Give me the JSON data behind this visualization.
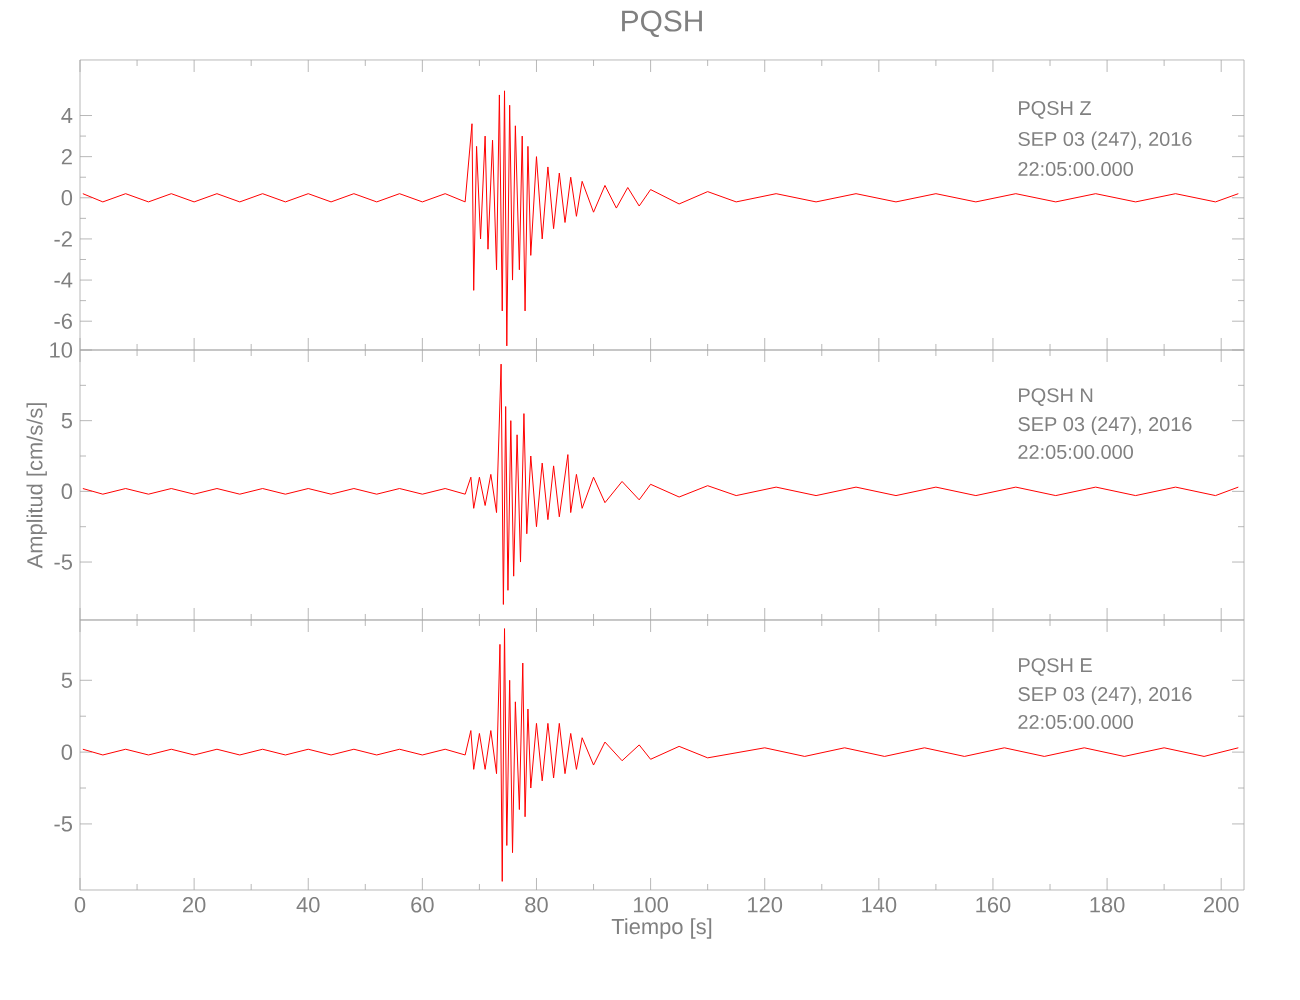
{
  "chart_data": [
    {
      "type": "line",
      "title": "PQSH",
      "color": "#ff0000",
      "xlim": [
        0,
        204
      ],
      "xticks": [
        0,
        20,
        40,
        60,
        80,
        100,
        120,
        140,
        160,
        180,
        200
      ],
      "ylim": [
        -7.4,
        6.7
      ],
      "yticks": [
        -6,
        -4,
        -2,
        0,
        2,
        4
      ],
      "tick_labels": "y",
      "annotations": [
        "PQSH   Z",
        "SEP 03 (247), 2016",
        "22:05:00.000"
      ],
      "x": [
        0.5,
        4,
        8,
        12,
        16,
        20,
        24,
        28,
        32,
        36,
        40,
        44,
        48,
        52,
        56,
        60,
        64,
        67.5,
        68.7,
        69,
        69.5,
        70.2,
        71,
        71.5,
        72.3,
        73,
        73.5,
        74,
        74.4,
        74.8,
        75.3,
        75.8,
        76.3,
        77,
        77.5,
        78,
        78.5,
        79,
        80,
        81,
        82,
        83,
        84,
        85,
        86,
        87,
        88,
        90,
        92,
        94,
        96,
        98,
        100,
        105,
        110,
        115,
        122,
        129,
        136,
        143,
        150,
        157,
        164,
        171,
        178,
        185,
        192,
        199,
        203
      ],
      "values": [
        0.2,
        -0.2,
        0.2,
        -0.2,
        0.2,
        -0.2,
        0.2,
        -0.2,
        0.2,
        -0.2,
        0.2,
        -0.2,
        0.2,
        -0.2,
        0.2,
        -0.2,
        0.2,
        -0.2,
        3.6,
        -4.5,
        2.5,
        -2,
        3,
        -2.5,
        2.8,
        -3.5,
        5,
        -5.5,
        5.2,
        -7.2,
        4.5,
        -4,
        3.5,
        -3.5,
        3,
        -5.5,
        2.5,
        -2.8,
        2,
        -2,
        1.5,
        -1.5,
        1.2,
        -1.2,
        1,
        -0.9,
        0.8,
        -0.7,
        0.6,
        -0.5,
        0.5,
        -0.4,
        0.4,
        -0.3,
        0.3,
        -0.2,
        0.2,
        -0.2,
        0.2,
        -0.2,
        0.2,
        -0.2,
        0.2,
        -0.2,
        0.2,
        -0.2,
        0.2,
        -0.2,
        0.2
      ]
    },
    {
      "type": "line",
      "ylabel": "Amplitud [cm/s/s]",
      "color": "#ff0000",
      "xlim": [
        0,
        204
      ],
      "xticks": [
        0,
        20,
        40,
        60,
        80,
        100,
        120,
        140,
        160,
        180,
        200
      ],
      "ylim": [
        -9.1,
        10
      ],
      "yticks": [
        -5,
        0,
        5,
        10
      ],
      "tick_labels": "y",
      "annotations": [
        "PQSH   N",
        "SEP 03 (247), 2016",
        "22:05:00.000"
      ],
      "x": [
        0.5,
        4,
        8,
        12,
        16,
        20,
        24,
        28,
        32,
        36,
        40,
        44,
        48,
        52,
        56,
        60,
        64,
        67.5,
        68.5,
        69,
        70,
        71,
        72,
        73,
        73.8,
        74.2,
        74.6,
        75,
        75.5,
        76,
        76.6,
        77.2,
        77.8,
        78.3,
        79,
        80,
        81,
        82,
        83,
        84,
        85.5,
        86,
        87,
        88,
        90,
        92,
        95,
        98,
        100,
        105,
        110,
        115,
        122,
        129,
        136,
        143,
        150,
        157,
        164,
        171,
        178,
        185,
        192,
        199,
        203
      ],
      "values": [
        0.2,
        -0.2,
        0.2,
        -0.2,
        0.2,
        -0.2,
        0.2,
        -0.2,
        0.2,
        -0.2,
        0.2,
        -0.2,
        0.2,
        -0.2,
        0.2,
        -0.2,
        0.2,
        -0.2,
        1,
        -1.2,
        1,
        -1,
        1.2,
        -1.5,
        9,
        -8,
        6,
        -7,
        5,
        -6,
        4,
        -5,
        5.5,
        -3,
        2.5,
        -2.5,
        2,
        -2,
        1.8,
        -1.8,
        2.6,
        -1.5,
        1.2,
        -1.2,
        1,
        -0.8,
        0.7,
        -0.6,
        0.5,
        -0.4,
        0.4,
        -0.3,
        0.3,
        -0.3,
        0.3,
        -0.3,
        0.3,
        -0.3,
        0.3,
        -0.3,
        0.3,
        -0.3,
        0.3,
        -0.3,
        0.3
      ]
    },
    {
      "type": "line",
      "xlabel": "Tiempo [s]",
      "color": "#ff0000",
      "xlim": [
        0,
        204
      ],
      "xticks": [
        0,
        20,
        40,
        60,
        80,
        100,
        120,
        140,
        160,
        180,
        200
      ],
      "ylim": [
        -9.6,
        9.2
      ],
      "yticks": [
        -5,
        0,
        5
      ],
      "annotations": [
        "PQSH   E",
        "SEP 03 (247), 2016",
        "22:05:00.000"
      ],
      "x": [
        0.5,
        4,
        8,
        12,
        16,
        20,
        24,
        28,
        32,
        36,
        40,
        44,
        48,
        52,
        56,
        60,
        64,
        67.5,
        68.5,
        69,
        70,
        71,
        72,
        73,
        73.6,
        74,
        74.4,
        74.8,
        75.3,
        75.8,
        76.3,
        77,
        77.6,
        78,
        78.5,
        79,
        80,
        81,
        82,
        83,
        84,
        85,
        86,
        87,
        88,
        90,
        92,
        95,
        98,
        100,
        105,
        110,
        120,
        127,
        134,
        141,
        148,
        155,
        162,
        169,
        176,
        183,
        190,
        197,
        203
      ],
      "values": [
        0.2,
        -0.2,
        0.2,
        -0.2,
        0.2,
        -0.2,
        0.2,
        -0.2,
        0.2,
        -0.2,
        0.2,
        -0.2,
        0.2,
        -0.2,
        0.2,
        -0.2,
        0.2,
        -0.2,
        1.5,
        -1.2,
        1.3,
        -1.2,
        1.5,
        -1.5,
        7.5,
        -9,
        8.6,
        -6.5,
        5,
        -7,
        3.5,
        -4,
        6.2,
        -4.5,
        3,
        -2.5,
        2,
        -2,
        2,
        -1.8,
        2,
        -1.5,
        1.3,
        -1.2,
        1,
        -0.9,
        0.7,
        -0.6,
        0.5,
        -0.5,
        0.4,
        -0.4,
        0.3,
        -0.3,
        0.3,
        -0.3,
        0.3,
        -0.3,
        0.3,
        -0.3,
        0.3,
        -0.3,
        0.3,
        -0.3,
        0.3
      ]
    }
  ]
}
